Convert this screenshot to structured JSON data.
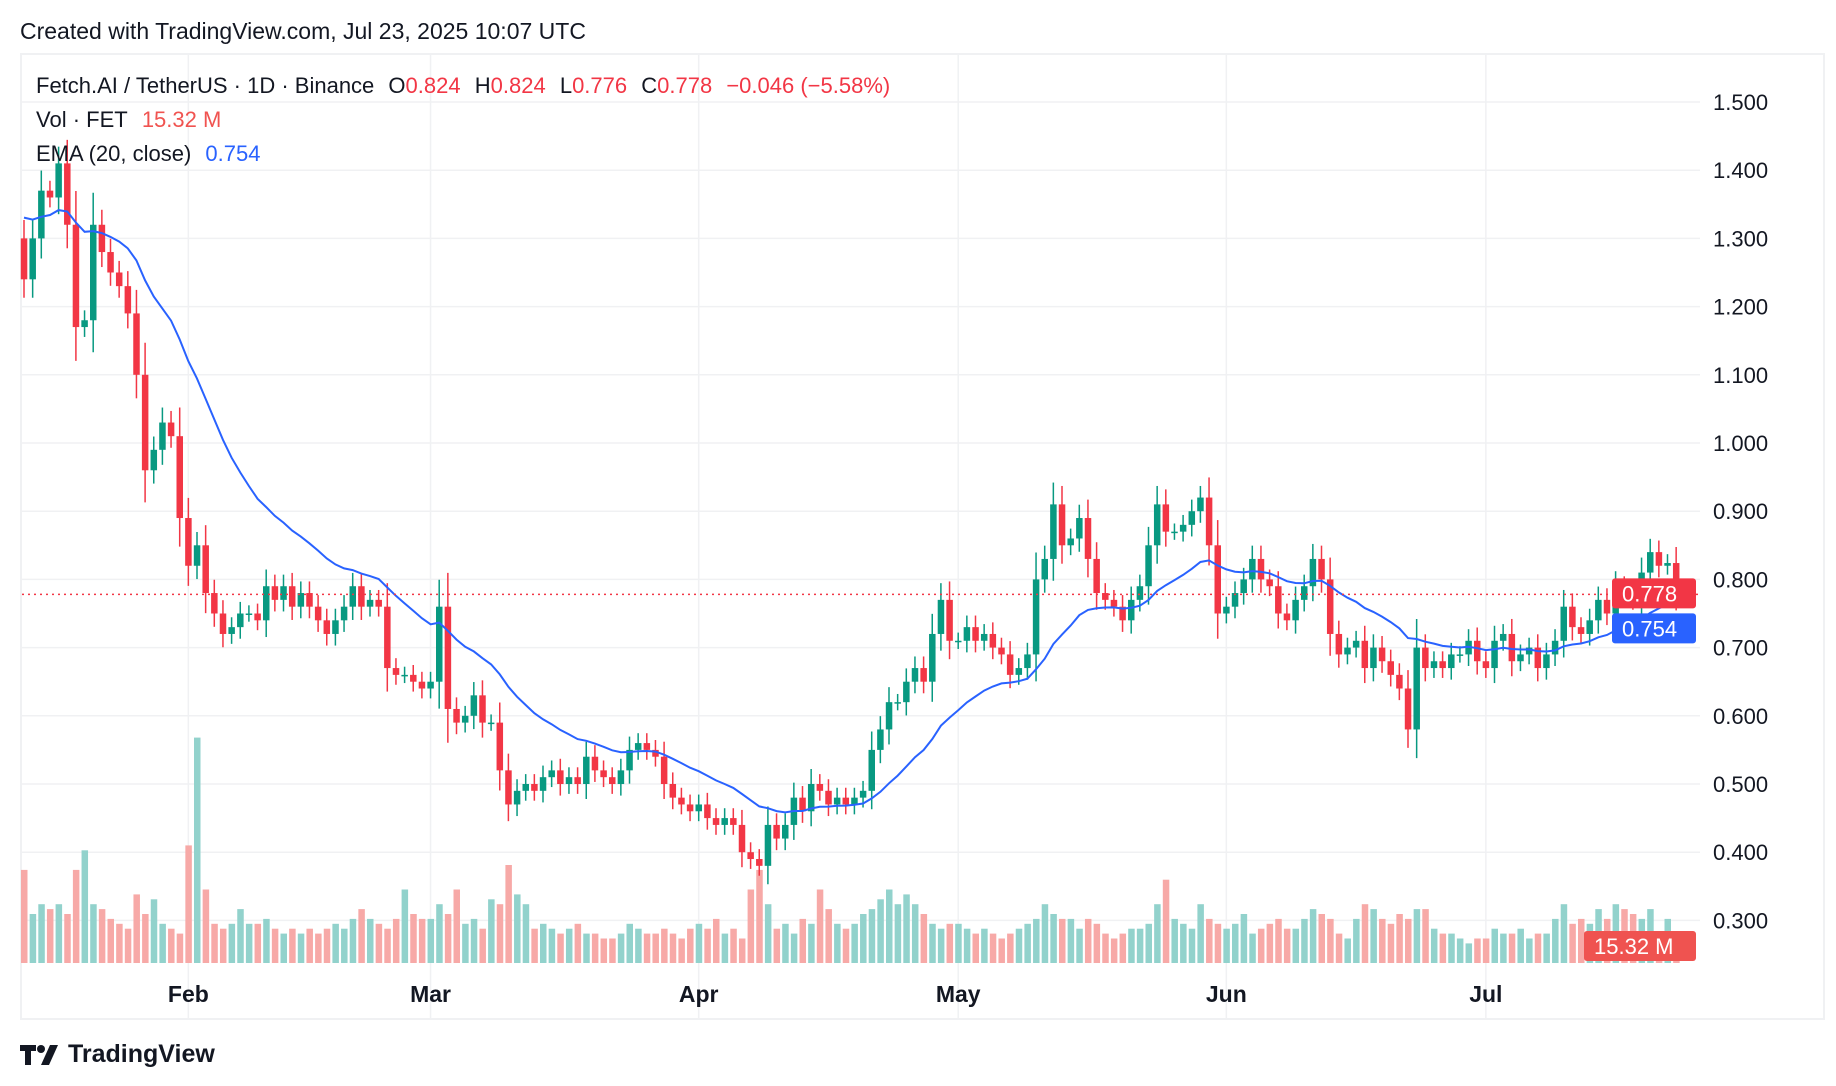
{
  "credit": "Created with TradingView.com, Jul 23, 2025 10:07 UTC",
  "legend": {
    "symbol": "Fetch.AI / TetherUS · 1D · Binance",
    "o_label": "O",
    "o": "0.824",
    "h_label": "H",
    "h": "0.824",
    "l_label": "L",
    "l": "0.776",
    "c_label": "C",
    "c": "0.778",
    "change": "−0.046 (−5.58%)",
    "vol_label": "Vol · FET",
    "vol": "15.32 M",
    "ema_label": "EMA (20, close)",
    "ema": "0.754"
  },
  "logo_text": "TradingView",
  "colors": {
    "up": "#089981",
    "down": "#f23645",
    "ema": "#2962ff",
    "vol_up": "#92d2cc",
    "vol_down": "#f7a9a7"
  },
  "chart_data": {
    "type": "candlestick",
    "title": "Fetch.AI / TetherUS · 1D · Binance",
    "start_date": "2025-01-13",
    "end_date": "2025-07-23",
    "first_open": 1.3,
    "ylim": [
      0.25,
      1.55
    ],
    "y_ticks": [
      "1.500",
      "1.400",
      "1.300",
      "1.200",
      "1.100",
      "1.000",
      "0.900",
      "0.800",
      "0.700",
      "0.600",
      "0.500",
      "0.400",
      "0.300"
    ],
    "x_ticks": [
      {
        "label": "Feb",
        "date": "2025-02-01"
      },
      {
        "label": "Mar",
        "date": "2025-03-01"
      },
      {
        "label": "Apr",
        "date": "2025-04-01"
      },
      {
        "label": "May",
        "date": "2025-05-01"
      },
      {
        "label": "Jun",
        "date": "2025-06-01"
      },
      {
        "label": "Jul",
        "date": "2025-07-01"
      }
    ],
    "grid": true,
    "close": [
      1.24,
      1.3,
      1.37,
      1.36,
      1.41,
      1.32,
      1.17,
      1.18,
      1.32,
      1.28,
      1.25,
      1.23,
      1.19,
      1.1,
      0.96,
      0.99,
      1.03,
      1.01,
      0.89,
      0.82,
      0.85,
      0.78,
      0.75,
      0.72,
      0.73,
      0.75,
      0.75,
      0.74,
      0.79,
      0.77,
      0.79,
      0.76,
      0.78,
      0.76,
      0.74,
      0.72,
      0.74,
      0.76,
      0.79,
      0.76,
      0.77,
      0.76,
      0.67,
      0.66,
      0.66,
      0.65,
      0.64,
      0.65,
      0.76,
      0.61,
      0.59,
      0.6,
      0.63,
      0.59,
      0.59,
      0.52,
      0.47,
      0.49,
      0.5,
      0.49,
      0.51,
      0.52,
      0.5,
      0.51,
      0.5,
      0.54,
      0.52,
      0.51,
      0.5,
      0.52,
      0.55,
      0.56,
      0.55,
      0.54,
      0.5,
      0.48,
      0.47,
      0.46,
      0.47,
      0.45,
      0.44,
      0.45,
      0.44,
      0.4,
      0.39,
      0.38,
      0.44,
      0.42,
      0.44,
      0.48,
      0.46,
      0.5,
      0.49,
      0.47,
      0.48,
      0.47,
      0.48,
      0.49,
      0.55,
      0.58,
      0.62,
      0.62,
      0.65,
      0.67,
      0.65,
      0.72,
      0.77,
      0.71,
      0.71,
      0.73,
      0.71,
      0.72,
      0.7,
      0.69,
      0.66,
      0.67,
      0.69,
      0.8,
      0.83,
      0.91,
      0.85,
      0.86,
      0.89,
      0.83,
      0.78,
      0.77,
      0.76,
      0.74,
      0.77,
      0.79,
      0.85,
      0.91,
      0.87,
      0.87,
      0.88,
      0.9,
      0.92,
      0.85,
      0.75,
      0.76,
      0.78,
      0.8,
      0.83,
      0.8,
      0.79,
      0.75,
      0.74,
      0.77,
      0.79,
      0.83,
      0.8,
      0.72,
      0.69,
      0.7,
      0.71,
      0.67,
      0.7,
      0.68,
      0.66,
      0.64,
      0.58,
      0.7,
      0.67,
      0.68,
      0.67,
      0.69,
      0.69,
      0.71,
      0.68,
      0.67,
      0.71,
      0.72,
      0.68,
      0.69,
      0.7,
      0.67,
      0.69,
      0.71,
      0.76,
      0.73,
      0.72,
      0.74,
      0.77,
      0.75,
      0.79,
      0.78,
      0.77,
      0.81,
      0.84,
      0.82,
      0.824,
      0.778
    ],
    "volume_m": [
      95,
      50,
      60,
      55,
      60,
      50,
      95,
      115,
      60,
      55,
      45,
      40,
      35,
      70,
      50,
      65,
      40,
      35,
      30,
      120,
      230,
      75,
      40,
      35,
      40,
      55,
      40,
      40,
      45,
      35,
      30,
      35,
      30,
      35,
      30,
      35,
      40,
      35,
      45,
      55,
      45,
      40,
      35,
      45,
      75,
      50,
      45,
      45,
      60,
      50,
      75,
      40,
      45,
      35,
      65,
      60,
      100,
      70,
      60,
      35,
      40,
      35,
      30,
      35,
      40,
      30,
      30,
      25,
      25,
      30,
      40,
      35,
      30,
      30,
      35,
      30,
      25,
      35,
      40,
      35,
      45,
      30,
      35,
      25,
      75,
      95,
      60,
      35,
      40,
      30,
      45,
      40,
      75,
      55,
      40,
      35,
      40,
      50,
      55,
      65,
      75,
      60,
      70,
      60,
      50,
      40,
      35,
      40,
      40,
      35,
      30,
      35,
      30,
      25,
      30,
      35,
      40,
      45,
      60,
      50,
      45,
      45,
      35,
      45,
      40,
      30,
      25,
      30,
      35,
      35,
      40,
      60,
      85,
      45,
      40,
      35,
      60,
      45,
      40,
      35,
      40,
      50,
      30,
      35,
      40,
      45,
      35,
      35,
      45,
      55,
      50,
      45,
      30,
      25,
      45,
      60,
      55,
      45,
      40,
      50,
      45,
      55,
      55,
      35,
      30,
      30,
      25,
      20,
      25,
      25,
      35,
      30,
      30,
      35,
      25,
      30,
      30,
      45,
      60,
      40,
      45,
      40,
      55,
      45,
      60,
      55,
      50,
      45,
      55,
      30,
      45,
      15.32
    ],
    "last_price": "0.778",
    "ema_period": 20,
    "ema_last": "0.754",
    "volume_last": "15.32 M"
  }
}
